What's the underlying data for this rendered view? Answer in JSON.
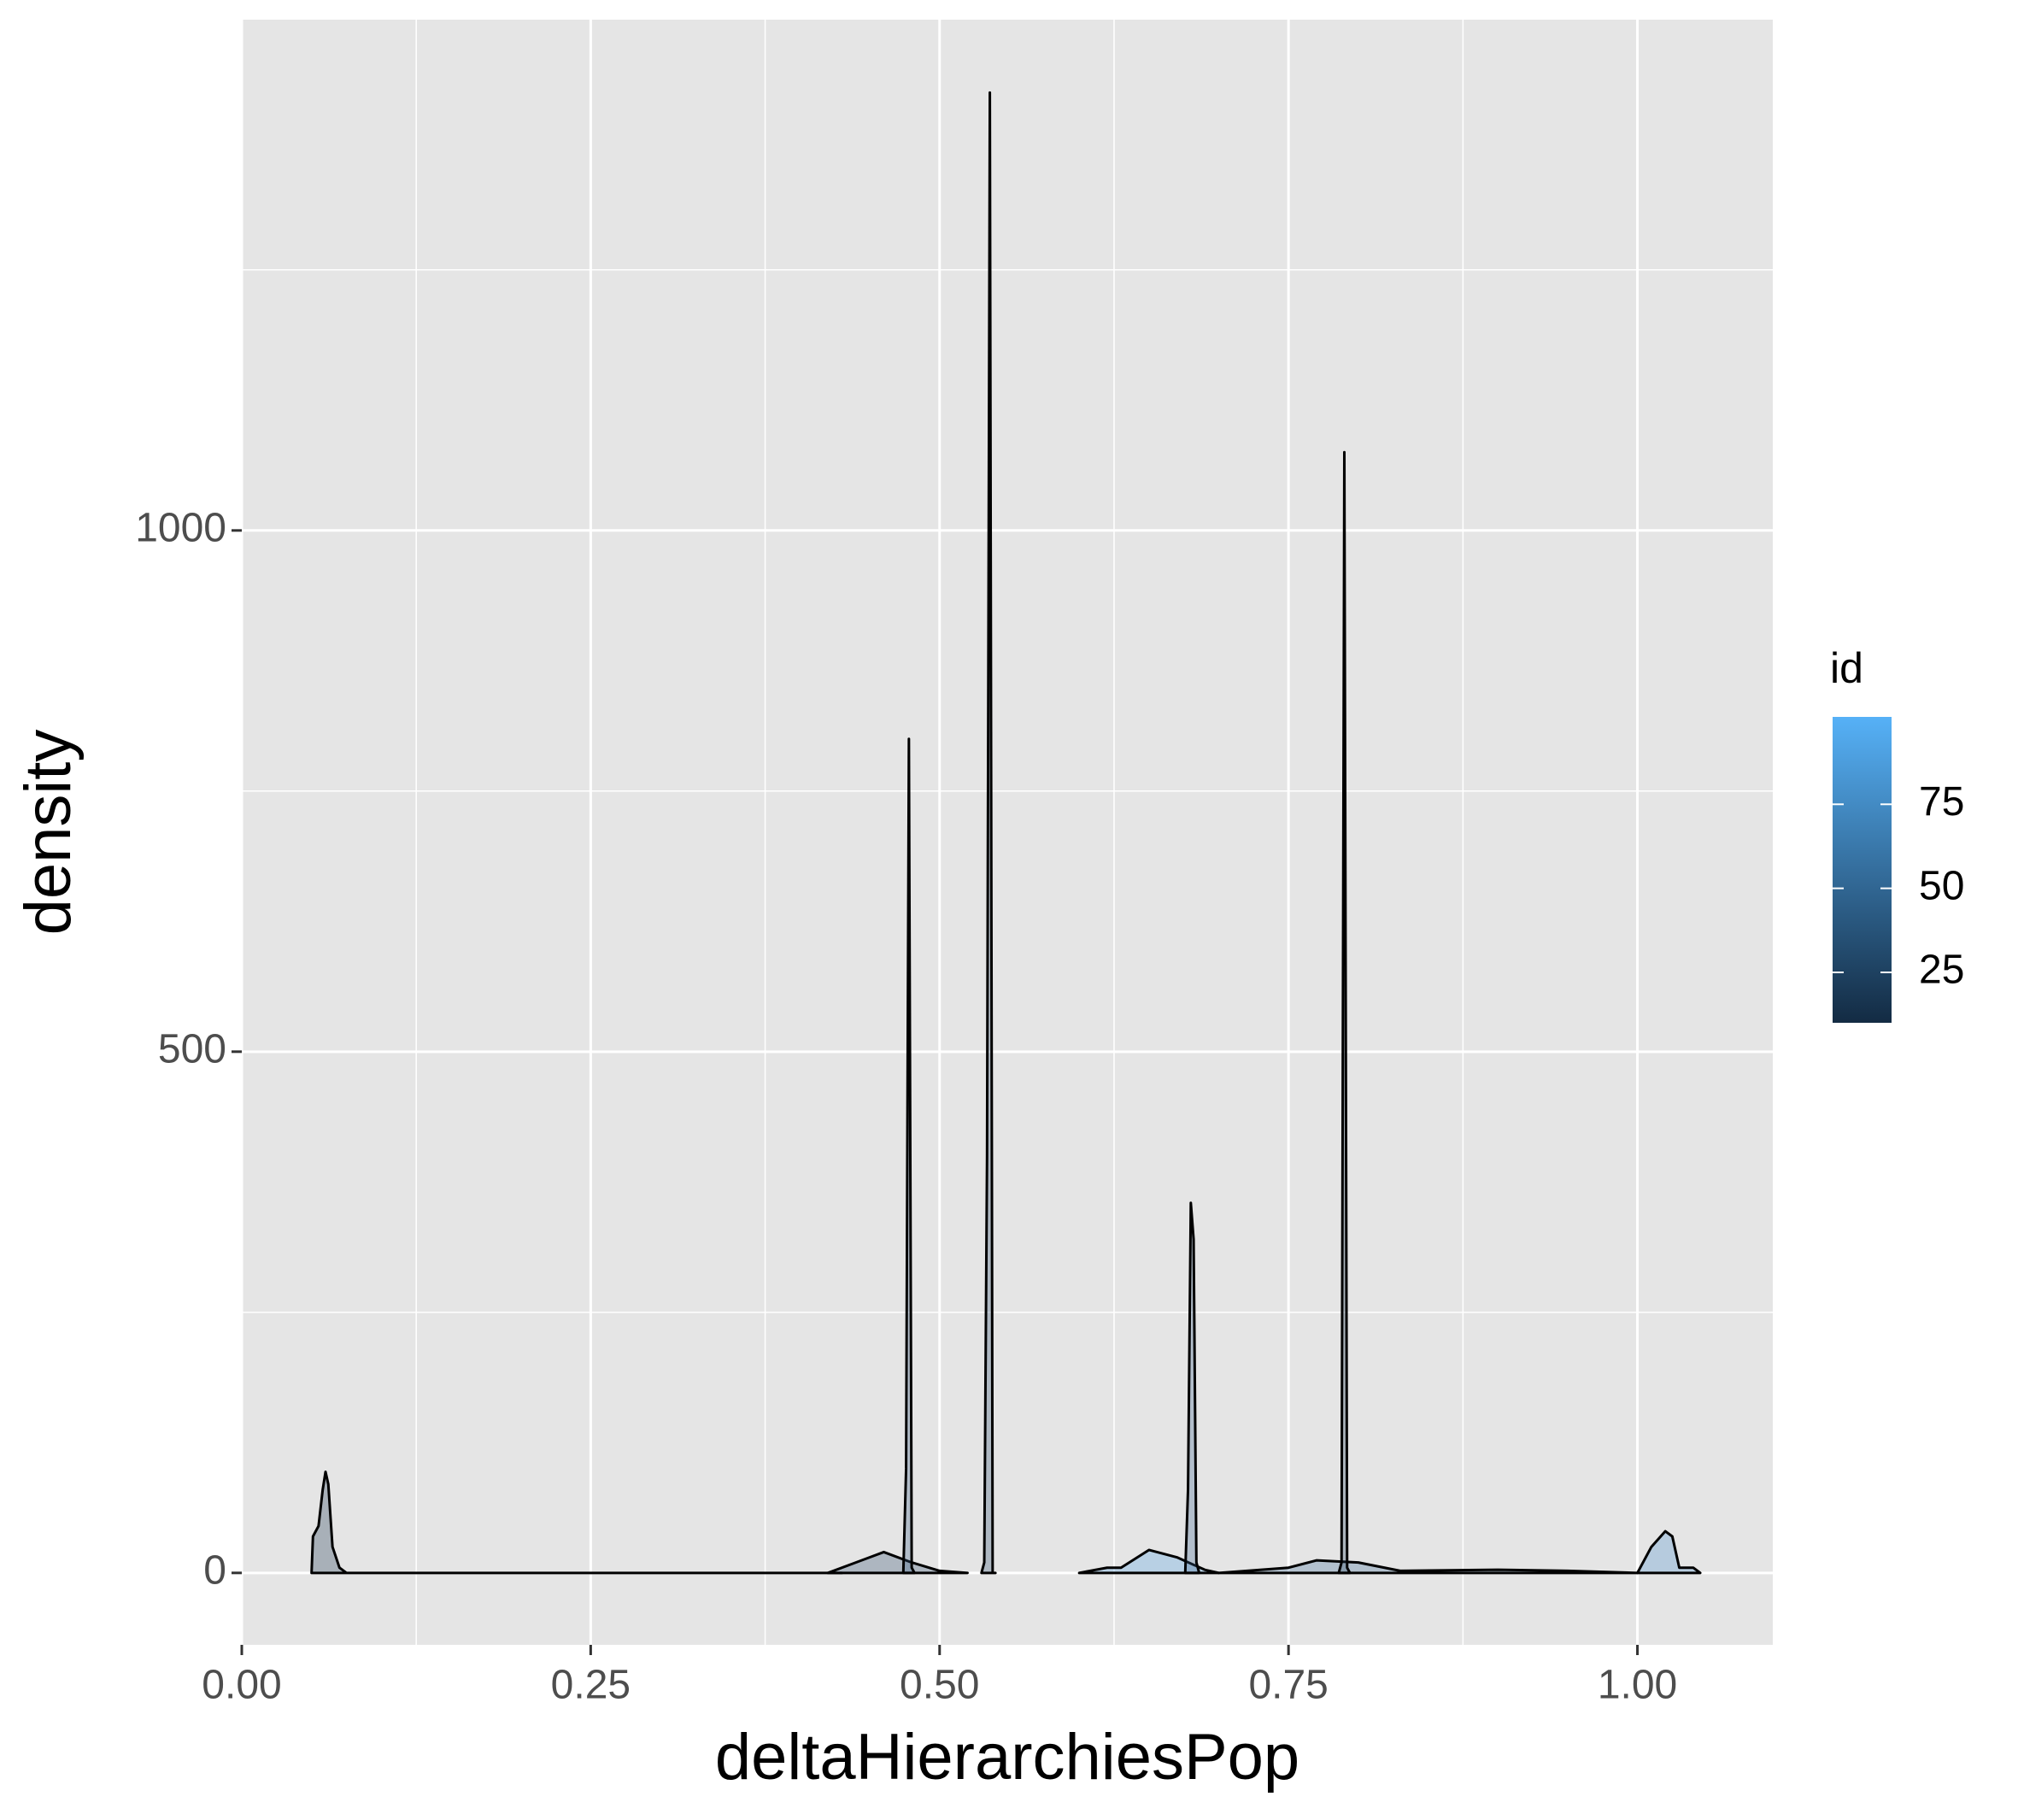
{
  "chart_data": {
    "type": "density",
    "xlabel": "deltaHierarchiesPop",
    "ylabel": "density",
    "xlim": [
      0,
      1.097
    ],
    "ylim": [
      -69,
      1490
    ],
    "xticks": [
      {
        "value": 0,
        "label": "0.00"
      },
      0.25,
      {
        "value": 0.5,
        "label": "0.50"
      },
      0.75,
      {
        "value": 1,
        "label": "1.00"
      }
    ],
    "yticks": [
      0,
      500,
      1000
    ],
    "x_minor_grid": [
      0.125,
      0.375,
      0.625,
      0.875
    ],
    "y_minor_grid": [
      250,
      750,
      1250
    ],
    "grid": true,
    "alpha": 0.3,
    "outline_color": "#000000",
    "legend": {
      "title": "id",
      "colors": [
        "#132B43",
        "#56B1F7"
      ],
      "lim": [
        10,
        101
      ],
      "ticks": [
        25,
        50,
        75
      ]
    },
    "series": [
      {
        "color": "#1a3550",
        "x": [
          0.05,
          0.051,
          0.055,
          0.058,
          0.06,
          0.062,
          0.065,
          0.07,
          0.075,
          0.2,
          0.43
        ],
        "values": [
          0,
          35,
          45,
          80,
          97,
          85,
          25,
          5,
          0,
          0,
          0
        ]
      },
      {
        "color": "#2a4a6a",
        "x": [
          0.42,
          0.44,
          0.46,
          0.48,
          0.5,
          0.52
        ],
        "values": [
          0,
          10,
          20,
          10,
          2,
          0
        ]
      },
      {
        "color": "#3a6188",
        "x": [
          0.474,
          0.476,
          0.478,
          0.48,
          0.482
        ],
        "values": [
          0,
          100,
          800,
          5,
          0
        ]
      },
      {
        "color": "#2e5172",
        "x": [
          0.53,
          0.532,
          0.534,
          0.536,
          0.538,
          0.54
        ],
        "values": [
          0,
          10,
          400,
          1420,
          0,
          0
        ]
      },
      {
        "color": "#4f9ee0",
        "x": [
          0.6,
          0.62,
          0.63,
          0.65,
          0.67,
          0.69,
          0.7
        ],
        "values": [
          0,
          5,
          5,
          22,
          15,
          3,
          0
        ]
      },
      {
        "color": "#3b6590",
        "x": [
          0.676,
          0.678,
          0.68,
          0.682,
          0.684,
          0.686
        ],
        "values": [
          0,
          80,
          355,
          320,
          10,
          0
        ]
      },
      {
        "color": "#3c6a96",
        "x": [
          0.7,
          0.75,
          0.77,
          0.8,
          0.83,
          0.9,
          0.95,
          1.0
        ],
        "values": [
          0,
          5,
          12,
          10,
          2,
          3,
          2,
          0
        ]
      },
      {
        "color": "#24415e",
        "x": [
          0.786,
          0.788,
          0.79,
          0.792,
          0.794
        ],
        "values": [
          0,
          10,
          1075,
          5,
          0
        ]
      },
      {
        "color": "#4a8fcc",
        "x": [
          1.0,
          1.01,
          1.02,
          1.025,
          1.03,
          1.04,
          1.045
        ],
        "values": [
          0,
          25,
          40,
          35,
          5,
          5,
          0
        ]
      }
    ]
  }
}
